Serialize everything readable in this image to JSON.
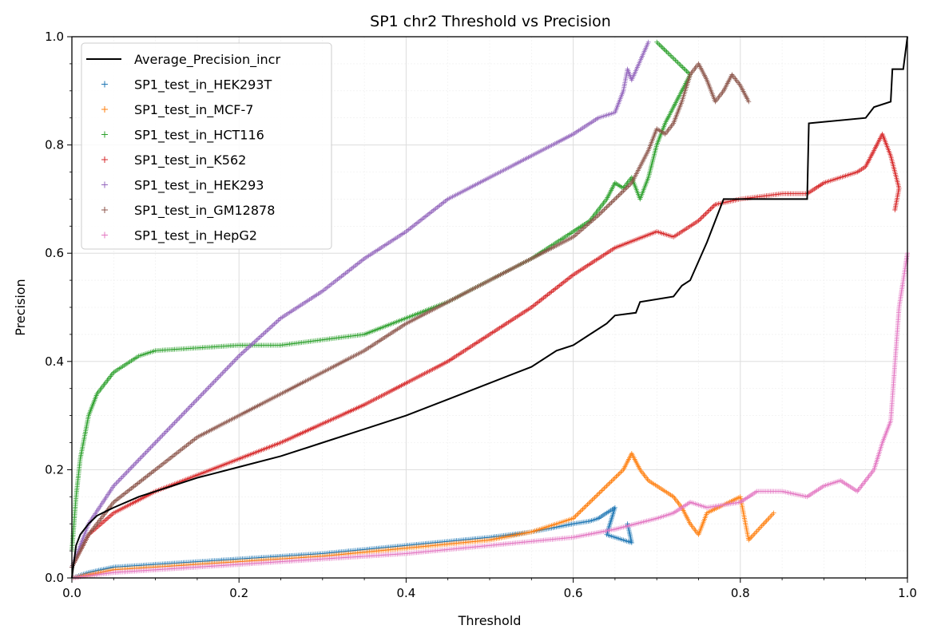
{
  "chart_data": {
    "type": "scatter",
    "title": "SP1 chr2 Threshold vs Precision",
    "xlabel": "Threshold",
    "ylabel": "Precision",
    "xlim": [
      0,
      1
    ],
    "ylim": [
      0,
      1
    ],
    "xticks": [
      "0.0",
      "0.2",
      "0.4",
      "0.6",
      "0.8",
      "1.0"
    ],
    "yticks": [
      "0.0",
      "0.2",
      "0.4",
      "0.6",
      "0.8",
      "1.0"
    ],
    "grid": true,
    "legend_position": "top-left",
    "series": [
      {
        "name": "Average_Precision_incr",
        "kind": "line",
        "color": "#000000",
        "points": [
          [
            0,
            0
          ],
          [
            0.005,
            0.06
          ],
          [
            0.01,
            0.08
          ],
          [
            0.02,
            0.1
          ],
          [
            0.03,
            0.115
          ],
          [
            0.05,
            0.13
          ],
          [
            0.08,
            0.15
          ],
          [
            0.1,
            0.16
          ],
          [
            0.15,
            0.185
          ],
          [
            0.2,
            0.205
          ],
          [
            0.25,
            0.225
          ],
          [
            0.3,
            0.25
          ],
          [
            0.35,
            0.275
          ],
          [
            0.4,
            0.3
          ],
          [
            0.45,
            0.33
          ],
          [
            0.5,
            0.36
          ],
          [
            0.55,
            0.39
          ],
          [
            0.58,
            0.42
          ],
          [
            0.6,
            0.43
          ],
          [
            0.62,
            0.45
          ],
          [
            0.64,
            0.47
          ],
          [
            0.65,
            0.485
          ],
          [
            0.675,
            0.49
          ],
          [
            0.68,
            0.51
          ],
          [
            0.7,
            0.515
          ],
          [
            0.72,
            0.52
          ],
          [
            0.73,
            0.54
          ],
          [
            0.74,
            0.55
          ],
          [
            0.76,
            0.62
          ],
          [
            0.78,
            0.7
          ],
          [
            0.88,
            0.7
          ],
          [
            0.882,
            0.84
          ],
          [
            0.95,
            0.85
          ],
          [
            0.96,
            0.87
          ],
          [
            0.98,
            0.88
          ],
          [
            0.982,
            0.94
          ],
          [
            0.995,
            0.94
          ],
          [
            1.0,
            1.0
          ]
        ]
      },
      {
        "name": "SP1_test_in_HEK293T",
        "kind": "scatter",
        "color": "#1f77b4",
        "points": [
          [
            0,
            0
          ],
          [
            0.02,
            0.01
          ],
          [
            0.05,
            0.02
          ],
          [
            0.1,
            0.025
          ],
          [
            0.2,
            0.035
          ],
          [
            0.3,
            0.045
          ],
          [
            0.4,
            0.06
          ],
          [
            0.5,
            0.075
          ],
          [
            0.55,
            0.085
          ],
          [
            0.6,
            0.1
          ],
          [
            0.62,
            0.105
          ],
          [
            0.63,
            0.11
          ],
          [
            0.64,
            0.12
          ],
          [
            0.65,
            0.13
          ],
          [
            0.64,
            0.08
          ],
          [
            0.66,
            0.07
          ],
          [
            0.67,
            0.065
          ],
          [
            0.665,
            0.1
          ]
        ]
      },
      {
        "name": "SP1_test_in_MCF-7",
        "kind": "scatter",
        "color": "#ff7f0e",
        "points": [
          [
            0,
            0
          ],
          [
            0.05,
            0.015
          ],
          [
            0.1,
            0.02
          ],
          [
            0.2,
            0.03
          ],
          [
            0.3,
            0.04
          ],
          [
            0.4,
            0.055
          ],
          [
            0.5,
            0.07
          ],
          [
            0.55,
            0.085
          ],
          [
            0.6,
            0.11
          ],
          [
            0.62,
            0.14
          ],
          [
            0.64,
            0.17
          ],
          [
            0.66,
            0.2
          ],
          [
            0.67,
            0.23
          ],
          [
            0.68,
            0.2
          ],
          [
            0.69,
            0.18
          ],
          [
            0.7,
            0.17
          ],
          [
            0.72,
            0.15
          ],
          [
            0.73,
            0.13
          ],
          [
            0.74,
            0.1
          ],
          [
            0.75,
            0.08
          ],
          [
            0.76,
            0.12
          ],
          [
            0.8,
            0.15
          ],
          [
            0.81,
            0.07
          ],
          [
            0.84,
            0.12
          ]
        ]
      },
      {
        "name": "SP1_test_in_HCT116",
        "kind": "scatter",
        "color": "#2ca02c",
        "points": [
          [
            0,
            0.05
          ],
          [
            0.005,
            0.15
          ],
          [
            0.01,
            0.22
          ],
          [
            0.02,
            0.3
          ],
          [
            0.03,
            0.34
          ],
          [
            0.05,
            0.38
          ],
          [
            0.08,
            0.41
          ],
          [
            0.1,
            0.42
          ],
          [
            0.15,
            0.425
          ],
          [
            0.2,
            0.43
          ],
          [
            0.25,
            0.43
          ],
          [
            0.3,
            0.44
          ],
          [
            0.35,
            0.45
          ],
          [
            0.4,
            0.48
          ],
          [
            0.45,
            0.51
          ],
          [
            0.5,
            0.55
          ],
          [
            0.55,
            0.59
          ],
          [
            0.6,
            0.64
          ],
          [
            0.62,
            0.66
          ],
          [
            0.64,
            0.7
          ],
          [
            0.65,
            0.73
          ],
          [
            0.66,
            0.72
          ],
          [
            0.67,
            0.74
          ],
          [
            0.68,
            0.7
          ],
          [
            0.69,
            0.74
          ],
          [
            0.7,
            0.8
          ],
          [
            0.71,
            0.84
          ],
          [
            0.72,
            0.87
          ],
          [
            0.73,
            0.9
          ],
          [
            0.74,
            0.93
          ],
          [
            0.7,
            0.99
          ]
        ]
      },
      {
        "name": "SP1_test_in_K562",
        "kind": "scatter",
        "color": "#d62728",
        "points": [
          [
            0,
            0.02
          ],
          [
            0.02,
            0.08
          ],
          [
            0.05,
            0.12
          ],
          [
            0.1,
            0.16
          ],
          [
            0.15,
            0.19
          ],
          [
            0.2,
            0.22
          ],
          [
            0.25,
            0.25
          ],
          [
            0.3,
            0.285
          ],
          [
            0.35,
            0.32
          ],
          [
            0.4,
            0.36
          ],
          [
            0.45,
            0.4
          ],
          [
            0.5,
            0.45
          ],
          [
            0.55,
            0.5
          ],
          [
            0.6,
            0.56
          ],
          [
            0.65,
            0.61
          ],
          [
            0.7,
            0.64
          ],
          [
            0.72,
            0.63
          ],
          [
            0.75,
            0.66
          ],
          [
            0.77,
            0.69
          ],
          [
            0.8,
            0.7
          ],
          [
            0.85,
            0.71
          ],
          [
            0.88,
            0.71
          ],
          [
            0.9,
            0.73
          ],
          [
            0.92,
            0.74
          ],
          [
            0.94,
            0.75
          ],
          [
            0.95,
            0.76
          ],
          [
            0.96,
            0.79
          ],
          [
            0.97,
            0.82
          ],
          [
            0.98,
            0.78
          ],
          [
            0.99,
            0.72
          ],
          [
            0.985,
            0.68
          ]
        ]
      },
      {
        "name": "SP1_test_in_HEK293",
        "kind": "scatter",
        "color": "#9467bd",
        "points": [
          [
            0,
            0.02
          ],
          [
            0.02,
            0.1
          ],
          [
            0.05,
            0.17
          ],
          [
            0.1,
            0.25
          ],
          [
            0.15,
            0.33
          ],
          [
            0.2,
            0.41
          ],
          [
            0.25,
            0.48
          ],
          [
            0.3,
            0.53
          ],
          [
            0.35,
            0.59
          ],
          [
            0.4,
            0.64
          ],
          [
            0.45,
            0.7
          ],
          [
            0.5,
            0.74
          ],
          [
            0.55,
            0.78
          ],
          [
            0.6,
            0.82
          ],
          [
            0.62,
            0.84
          ],
          [
            0.63,
            0.85
          ],
          [
            0.65,
            0.86
          ],
          [
            0.66,
            0.9
          ],
          [
            0.665,
            0.94
          ],
          [
            0.67,
            0.92
          ],
          [
            0.69,
            0.99
          ]
        ]
      },
      {
        "name": "SP1_test_in_GM12878",
        "kind": "scatter",
        "color": "#8c564b",
        "points": [
          [
            0,
            0.02
          ],
          [
            0.02,
            0.08
          ],
          [
            0.05,
            0.14
          ],
          [
            0.1,
            0.2
          ],
          [
            0.15,
            0.26
          ],
          [
            0.2,
            0.3
          ],
          [
            0.25,
            0.34
          ],
          [
            0.3,
            0.38
          ],
          [
            0.35,
            0.42
          ],
          [
            0.4,
            0.47
          ],
          [
            0.45,
            0.51
          ],
          [
            0.5,
            0.55
          ],
          [
            0.55,
            0.59
          ],
          [
            0.6,
            0.63
          ],
          [
            0.63,
            0.67
          ],
          [
            0.65,
            0.7
          ],
          [
            0.67,
            0.73
          ],
          [
            0.69,
            0.79
          ],
          [
            0.7,
            0.83
          ],
          [
            0.71,
            0.82
          ],
          [
            0.72,
            0.84
          ],
          [
            0.73,
            0.88
          ],
          [
            0.74,
            0.93
          ],
          [
            0.75,
            0.95
          ],
          [
            0.76,
            0.92
          ],
          [
            0.77,
            0.88
          ],
          [
            0.78,
            0.9
          ],
          [
            0.79,
            0.93
          ],
          [
            0.8,
            0.91
          ],
          [
            0.81,
            0.88
          ]
        ]
      },
      {
        "name": "SP1_test_in_HepG2",
        "kind": "scatter",
        "color": "#e377c2",
        "points": [
          [
            0,
            0
          ],
          [
            0.05,
            0.01
          ],
          [
            0.1,
            0.015
          ],
          [
            0.2,
            0.025
          ],
          [
            0.3,
            0.035
          ],
          [
            0.4,
            0.045
          ],
          [
            0.5,
            0.06
          ],
          [
            0.6,
            0.075
          ],
          [
            0.65,
            0.09
          ],
          [
            0.7,
            0.11
          ],
          [
            0.72,
            0.12
          ],
          [
            0.74,
            0.14
          ],
          [
            0.76,
            0.13
          ],
          [
            0.8,
            0.14
          ],
          [
            0.82,
            0.16
          ],
          [
            0.85,
            0.16
          ],
          [
            0.88,
            0.15
          ],
          [
            0.9,
            0.17
          ],
          [
            0.92,
            0.18
          ],
          [
            0.94,
            0.16
          ],
          [
            0.95,
            0.18
          ],
          [
            0.96,
            0.2
          ],
          [
            0.97,
            0.25
          ],
          [
            0.98,
            0.29
          ],
          [
            0.99,
            0.5
          ],
          [
            1.0,
            0.6
          ]
        ]
      }
    ]
  }
}
